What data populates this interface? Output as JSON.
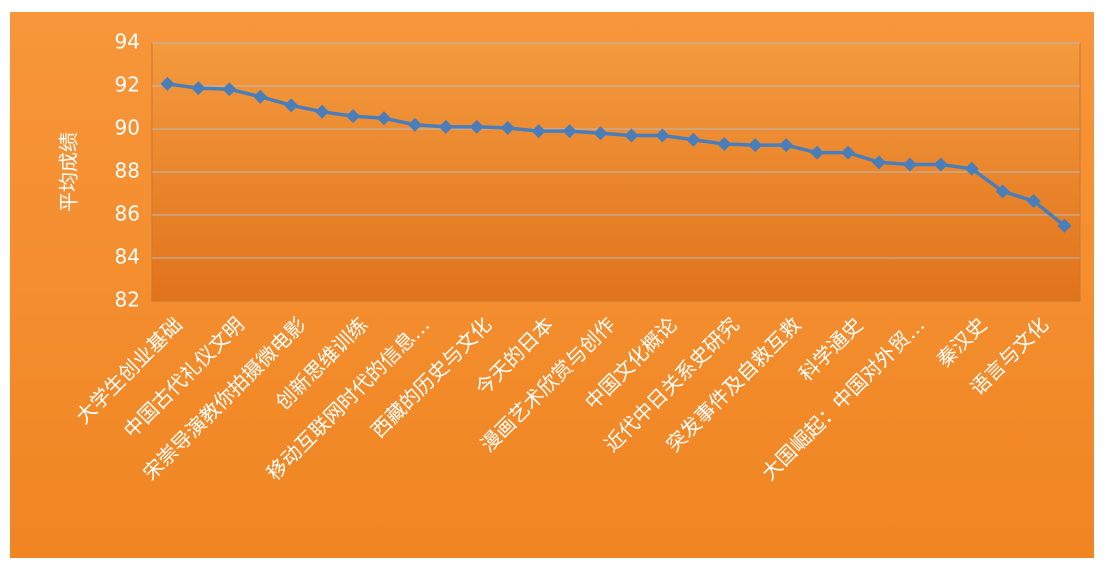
{
  "chart_data": {
    "type": "line",
    "y_label": "平均成绩",
    "categories": [
      "大学生创业基础",
      null,
      "中国古代礼仪文明",
      null,
      "宋崇导演教你拍摄微电影",
      null,
      "创新思维训练",
      null,
      "移动互联网时代的信息…",
      null,
      "西藏的历史与文化",
      null,
      "今天的日本",
      null,
      "漫画艺术欣赏与创作",
      null,
      "中国文化概论",
      null,
      "近代中日关系史研究",
      null,
      "突发事件及自救互救",
      null,
      "科学通史",
      null,
      "大国崛起：中国对外贸…",
      null,
      "秦汉史",
      null,
      "语言与文化",
      null
    ],
    "series": [
      {
        "name": "平均成绩",
        "color": "#4a7ebb",
        "values": [
          92.1,
          91.9,
          91.85,
          91.5,
          91.1,
          90.8,
          90.6,
          90.5,
          90.2,
          90.1,
          90.1,
          90.05,
          89.9,
          89.9,
          89.8,
          89.7,
          89.7,
          89.5,
          89.3,
          89.25,
          89.25,
          88.9,
          88.9,
          88.45,
          88.35,
          88.35,
          88.15,
          87.1,
          86.65,
          85.5
        ]
      }
    ],
    "ylim": [
      82,
      94
    ],
    "yticks": [
      82,
      84,
      86,
      88,
      90,
      92,
      94
    ],
    "grid": true
  }
}
